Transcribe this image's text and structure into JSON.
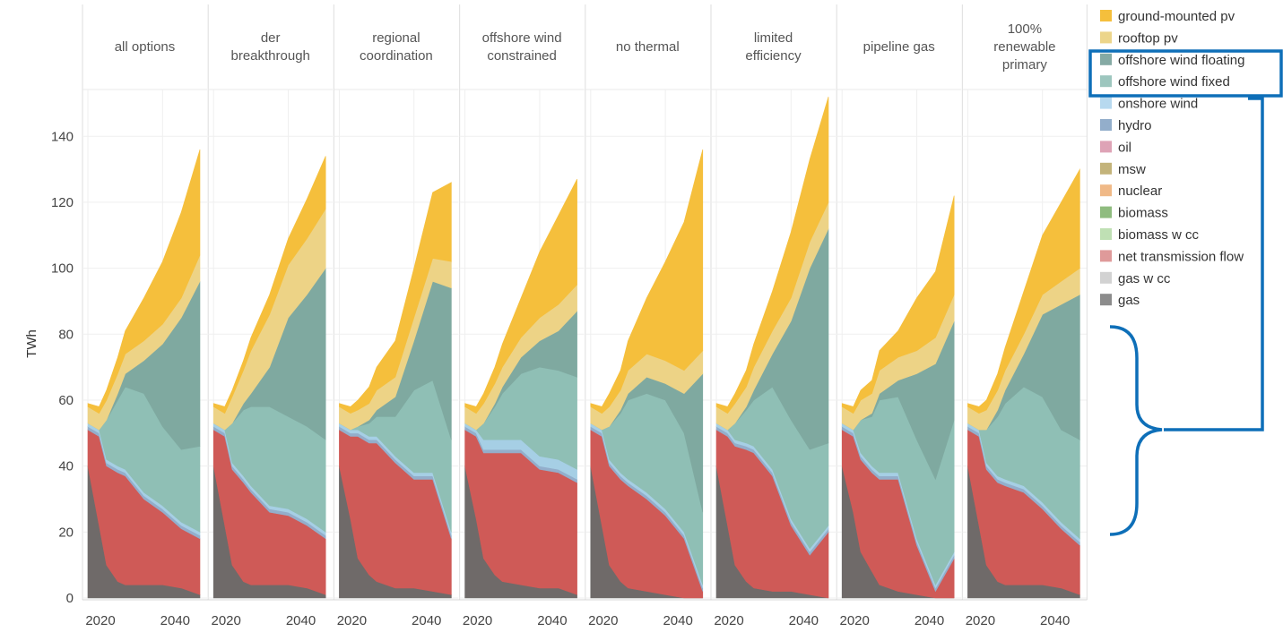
{
  "chart_data": {
    "type": "area",
    "stacked": true,
    "ylabel": "TWh",
    "ylim": [
      0,
      155
    ],
    "yticks": [
      0,
      20,
      40,
      60,
      80,
      100,
      120,
      140
    ],
    "x": [
      2020,
      2023,
      2025,
      2028,
      2030,
      2035,
      2040,
      2045,
      2050
    ],
    "xtick_labels": [
      "2020",
      "2040"
    ],
    "grid": true,
    "legend_position": "right",
    "legend": [
      {
        "name": "ground-mounted pv",
        "color": "#f5bf3c"
      },
      {
        "name": "rooftop pv",
        "color": "#ecd58b"
      },
      {
        "name": "offshore wind floating",
        "color": "#85aaa4"
      },
      {
        "name": "offshore wind fixed",
        "color": "#9dc6be"
      },
      {
        "name": "onshore wind",
        "color": "#b7d9ef"
      },
      {
        "name": "hydro",
        "color": "#93aecb"
      },
      {
        "name": "oil",
        "color": "#dea3b6"
      },
      {
        "name": "msw",
        "color": "#c3b37a"
      },
      {
        "name": "nuclear",
        "color": "#f0b987"
      },
      {
        "name": "biomass",
        "color": "#8fbc7f"
      },
      {
        "name": "biomass w cc",
        "color": "#bfe0b4"
      },
      {
        "name": "net transmission flow",
        "color": "#df9a9a"
      },
      {
        "name": "gas w cc",
        "color": "#d2d2d2"
      },
      {
        "name": "gas",
        "color": "#8c8c8c"
      }
    ],
    "stack_colors": {
      "gas": "#6f6a69",
      "net transmission flow": "#cf5a57",
      "hydro": "#93aecb",
      "onshore wind": "#a6cfe5",
      "offshore wind fixed": "#8fbfb5",
      "offshore wind floating": "#7fa9a0",
      "rooftop pv": "#edd386",
      "ground-mounted pv": "#f5bf3c"
    },
    "panels": [
      {
        "title_lines": [
          "all options"
        ],
        "series": {
          "gas": [
            40,
            22,
            10,
            5,
            4,
            4,
            4,
            3,
            1
          ],
          "net transmission flow": [
            11,
            27,
            30,
            33,
            33,
            26,
            22,
            18,
            17
          ],
          "hydro": [
            1,
            1,
            1,
            1,
            1,
            1,
            1,
            1,
            1
          ],
          "onshore wind": [
            1,
            1,
            1,
            1,
            1,
            1,
            1,
            1,
            1
          ],
          "offshore wind fixed": [
            0,
            0,
            12,
            20,
            25,
            30,
            24,
            22,
            26
          ],
          "offshore wind floating": [
            0,
            0,
            0,
            2,
            4,
            10,
            25,
            40,
            50
          ],
          "rooftop pv": [
            5,
            5,
            6,
            6,
            6,
            6,
            6,
            6,
            8
          ],
          "ground-mounted pv": [
            1,
            2,
            3,
            5,
            7,
            13,
            19,
            26,
            32
          ]
        }
      },
      {
        "title_lines": [
          "der",
          "breakthrough"
        ],
        "series": {
          "gas": [
            40,
            22,
            10,
            5,
            4,
            4,
            4,
            3,
            1
          ],
          "net transmission flow": [
            11,
            27,
            29,
            30,
            28,
            22,
            21,
            19,
            17
          ],
          "hydro": [
            1,
            1,
            1,
            1,
            1,
            1,
            1,
            1,
            1
          ],
          "onshore wind": [
            1,
            1,
            1,
            1,
            1,
            1,
            1,
            1,
            1
          ],
          "offshore wind fixed": [
            0,
            0,
            12,
            20,
            24,
            30,
            28,
            28,
            28
          ],
          "offshore wind floating": [
            0,
            0,
            0,
            2,
            4,
            12,
            30,
            40,
            52
          ],
          "rooftop pv": [
            5,
            5,
            8,
            10,
            13,
            16,
            16,
            17,
            18
          ],
          "ground-mounted pv": [
            1,
            2,
            2,
            3,
            4,
            6,
            8,
            12,
            16
          ]
        }
      },
      {
        "title_lines": [
          "regional",
          "coordination"
        ],
        "series": {
          "gas": [
            40,
            24,
            12,
            7,
            5,
            3,
            3,
            2,
            1
          ],
          "net transmission flow": [
            11,
            25,
            37,
            40,
            42,
            38,
            33,
            34,
            17
          ],
          "hydro": [
            1,
            1,
            1,
            1,
            1,
            1,
            1,
            1,
            1
          ],
          "onshore wind": [
            1,
            1,
            1,
            1,
            1,
            1,
            1,
            1,
            1
          ],
          "offshore wind fixed": [
            0,
            0,
            1,
            4,
            6,
            12,
            25,
            28,
            28
          ],
          "offshore wind floating": [
            0,
            0,
            0,
            1,
            2,
            6,
            15,
            30,
            46
          ],
          "rooftop pv": [
            5,
            5,
            5,
            5,
            6,
            6,
            7,
            7,
            8
          ],
          "ground-mounted pv": [
            1,
            2,
            3,
            5,
            7,
            11,
            15,
            20,
            24
          ]
        }
      },
      {
        "title_lines": [
          "offshore wind",
          "constrained"
        ],
        "series": {
          "gas": [
            40,
            24,
            12,
            7,
            5,
            4,
            3,
            3,
            1
          ],
          "net transmission flow": [
            11,
            25,
            32,
            37,
            39,
            40,
            36,
            35,
            34
          ],
          "hydro": [
            1,
            1,
            1,
            1,
            1,
            1,
            1,
            1,
            1
          ],
          "onshore wind": [
            1,
            1,
            3,
            3,
            3,
            3,
            3,
            3,
            3
          ],
          "offshore wind fixed": [
            0,
            0,
            5,
            10,
            14,
            20,
            27,
            27,
            28
          ],
          "offshore wind floating": [
            0,
            0,
            0,
            1,
            2,
            5,
            8,
            12,
            20
          ],
          "rooftop pv": [
            5,
            5,
            6,
            6,
            6,
            6,
            7,
            8,
            8
          ],
          "ground-mounted pv": [
            1,
            2,
            3,
            5,
            7,
            12,
            20,
            27,
            32
          ]
        }
      },
      {
        "title_lines": [
          "no thermal"
        ],
        "series": {
          "gas": [
            40,
            22,
            10,
            5,
            3,
            2,
            1,
            0,
            0
          ],
          "net transmission flow": [
            11,
            27,
            30,
            31,
            31,
            28,
            24,
            18,
            2
          ],
          "hydro": [
            1,
            1,
            1,
            1,
            1,
            1,
            1,
            1,
            1
          ],
          "onshore wind": [
            1,
            1,
            1,
            1,
            1,
            1,
            1,
            1,
            1
          ],
          "offshore wind fixed": [
            0,
            0,
            10,
            18,
            24,
            30,
            33,
            30,
            22
          ],
          "offshore wind floating": [
            0,
            0,
            0,
            1,
            2,
            5,
            5,
            12,
            42
          ],
          "rooftop pv": [
            5,
            5,
            6,
            6,
            7,
            7,
            7,
            7,
            7
          ],
          "ground-mounted pv": [
            1,
            2,
            4,
            6,
            9,
            17,
            30,
            45,
            61
          ]
        }
      },
      {
        "title_lines": [
          "limited",
          "efficiency"
        ],
        "series": {
          "gas": [
            40,
            22,
            10,
            5,
            3,
            2,
            2,
            1,
            0
          ],
          "net transmission flow": [
            11,
            27,
            36,
            40,
            41,
            35,
            20,
            12,
            20
          ],
          "hydro": [
            1,
            1,
            1,
            1,
            1,
            1,
            1,
            1,
            1
          ],
          "onshore wind": [
            1,
            1,
            1,
            1,
            1,
            1,
            1,
            1,
            1
          ],
          "offshore wind fixed": [
            0,
            0,
            5,
            10,
            14,
            25,
            30,
            30,
            25
          ],
          "offshore wind floating": [
            0,
            0,
            0,
            1,
            3,
            10,
            30,
            55,
            65
          ],
          "rooftop pv": [
            5,
            5,
            6,
            6,
            7,
            7,
            7,
            8,
            8
          ],
          "ground-mounted pv": [
            1,
            2,
            3,
            5,
            7,
            12,
            20,
            25,
            32
          ]
        }
      },
      {
        "title_lines": [
          "pipeline gas"
        ],
        "series": {
          "gas": [
            40,
            26,
            14,
            8,
            4,
            2,
            1,
            0,
            0
          ],
          "net transmission flow": [
            11,
            23,
            28,
            30,
            32,
            34,
            15,
            2,
            12
          ],
          "hydro": [
            1,
            1,
            1,
            1,
            1,
            1,
            1,
            1,
            1
          ],
          "onshore wind": [
            1,
            1,
            1,
            1,
            1,
            1,
            1,
            1,
            1
          ],
          "offshore wind fixed": [
            0,
            0,
            10,
            15,
            22,
            23,
            30,
            32,
            40
          ],
          "offshore wind floating": [
            0,
            0,
            0,
            1,
            2,
            5,
            20,
            35,
            30
          ],
          "rooftop pv": [
            5,
            5,
            6,
            6,
            7,
            7,
            7,
            8,
            8
          ],
          "ground-mounted pv": [
            1,
            2,
            3,
            4,
            6,
            8,
            16,
            20,
            30
          ]
        }
      },
      {
        "title_lines": [
          "100%",
          "renewable",
          "primary"
        ],
        "series": {
          "gas": [
            40,
            22,
            10,
            5,
            4,
            4,
            4,
            3,
            1
          ],
          "net transmission flow": [
            11,
            27,
            29,
            30,
            30,
            28,
            23,
            18,
            15
          ],
          "hydro": [
            1,
            1,
            1,
            1,
            1,
            1,
            1,
            1,
            1
          ],
          "onshore wind": [
            1,
            1,
            1,
            1,
            1,
            1,
            1,
            1,
            1
          ],
          "offshore wind fixed": [
            0,
            0,
            10,
            18,
            23,
            30,
            32,
            28,
            30
          ],
          "offshore wind floating": [
            0,
            0,
            0,
            2,
            4,
            10,
            25,
            38,
            44
          ],
          "rooftop pv": [
            5,
            5,
            6,
            6,
            6,
            6,
            6,
            7,
            8
          ],
          "ground-mounted pv": [
            1,
            2,
            3,
            5,
            7,
            13,
            18,
            24,
            30
          ]
        }
      }
    ]
  }
}
